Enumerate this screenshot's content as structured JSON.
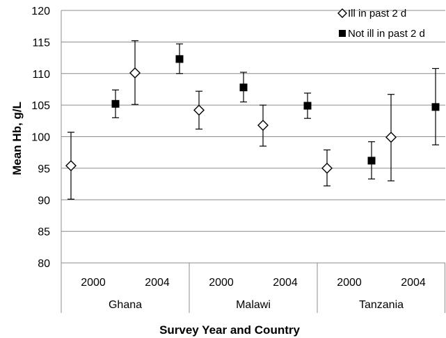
{
  "chart_data": {
    "type": "scatter",
    "xlabel": "Survey Year and Country",
    "ylabel": "Mean Hb, g/L",
    "ylim": [
      80,
      120
    ],
    "yticks": [
      80,
      85,
      90,
      95,
      100,
      105,
      110,
      115,
      120
    ],
    "grid": true,
    "legend_position": "top-right",
    "groups": [
      {
        "country": "Ghana",
        "years": [
          "2000",
          "2004"
        ]
      },
      {
        "country": "Malawi",
        "years": [
          "2000",
          "2004"
        ]
      },
      {
        "country": "Tanzania",
        "years": [
          "2000",
          "2004"
        ]
      }
    ],
    "series": [
      {
        "name": "Ill in past 2 d",
        "marker": "open-diamond",
        "values": [
          95.4,
          110.1,
          104.2,
          101.8,
          95.0,
          99.9
        ],
        "lower": [
          90.1,
          105.1,
          101.2,
          98.5,
          92.2,
          93.0
        ],
        "upper": [
          100.7,
          115.2,
          107.2,
          105.0,
          97.9,
          106.7
        ]
      },
      {
        "name": "Not ill in past 2 d",
        "marker": "filled-square",
        "values": [
          105.2,
          112.3,
          107.8,
          104.9,
          96.2,
          104.7
        ],
        "lower": [
          103.0,
          110.0,
          105.5,
          102.9,
          93.3,
          98.7
        ],
        "upper": [
          107.4,
          114.7,
          110.2,
          106.9,
          99.2,
          110.8
        ]
      }
    ]
  }
}
